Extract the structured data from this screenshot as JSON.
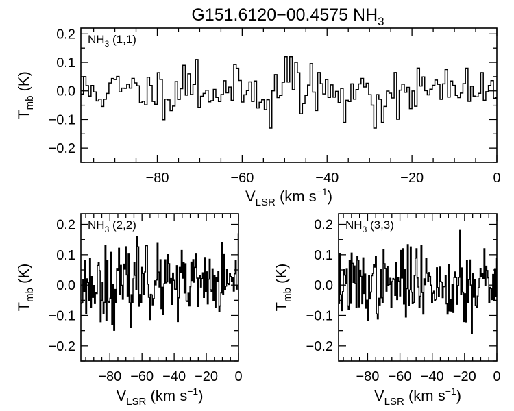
{
  "figure": {
    "title_main": "G151.6120−00.4575 NH",
    "title_sub": "3"
  },
  "axis_labels": {
    "x_main": "V",
    "x_sub": "LSR",
    "x_unit": " (km s",
    "x_sup": "−1",
    "x_close": ")",
    "y_main": "T",
    "y_sub": "mb",
    "y_unit": " (K)"
  },
  "chart_data": [
    {
      "type": "line",
      "title": "NH3 (1,1)",
      "label_main": "NH",
      "label_sub": "3",
      "label_rest": " (1,1)",
      "xlim": [
        -98,
        0
      ],
      "ylim": [
        -0.25,
        0.22
      ],
      "xticks": [
        -80,
        -60,
        -40,
        -20,
        0
      ],
      "xtick_labels": [
        "−80",
        "−60",
        "−40",
        "−20",
        "0"
      ],
      "yticks": [
        0.2,
        0.1,
        0.0,
        -0.1,
        -0.2
      ],
      "ytick_labels": [
        "0.2",
        "0.1",
        "0.0",
        "−0.1",
        "−0.2"
      ],
      "channel_width": 0.6,
      "noise_rms": 0.04,
      "features": [
        {
          "x": -97.5,
          "y": 0.05
        },
        {
          "x": -74.0,
          "y": 0.09
        },
        {
          "x": -71.0,
          "y": 0.11
        },
        {
          "x": -53.5,
          "y": -0.13
        },
        {
          "x": -50.0,
          "y": 0.12
        },
        {
          "x": -49.0,
          "y": 0.12
        },
        {
          "x": -47.5,
          "y": 0.1
        },
        {
          "x": -36.0,
          "y": -0.11
        },
        {
          "x": -29.0,
          "y": -0.13
        },
        {
          "x": -27.0,
          "y": -0.11
        },
        {
          "x": -19.0,
          "y": 0.08
        }
      ]
    },
    {
      "type": "line",
      "title": "NH3 (2,2)",
      "label_main": "NH",
      "label_sub": "3",
      "label_rest": " (2,2)",
      "xlim": [
        -98,
        0
      ],
      "ylim": [
        -0.25,
        0.235
      ],
      "xticks": [
        -80,
        -60,
        -40,
        -20,
        0
      ],
      "xtick_labels": [
        "−80",
        "−60",
        "−40",
        "−20",
        "0"
      ],
      "yticks": [
        0.2,
        0.1,
        0.0,
        -0.1,
        -0.2
      ],
      "ytick_labels": [
        "0.2",
        "0.1",
        "0.0",
        "−0.1",
        "−0.2"
      ],
      "channel_width": 0.6,
      "noise_rms": 0.055,
      "features": [
        {
          "x": -83.0,
          "y": 0.13
        },
        {
          "x": -79.0,
          "y": -0.13
        },
        {
          "x": -63.0,
          "y": 0.16
        },
        {
          "x": -57.5,
          "y": 0.13
        },
        {
          "x": -38.0,
          "y": -0.12
        }
      ]
    },
    {
      "type": "line",
      "title": "NH3 (3,3)",
      "label_main": "NH",
      "label_sub": "3",
      "label_rest": " (3,3)",
      "xlim": [
        -98,
        0
      ],
      "ylim": [
        -0.25,
        0.235
      ],
      "xticks": [
        -80,
        -60,
        -40,
        -20,
        0
      ],
      "xtick_labels": [
        "−80",
        "−60",
        "−40",
        "−20",
        "0"
      ],
      "yticks": [
        0.2,
        0.1,
        0.0,
        -0.1,
        -0.2
      ],
      "ytick_labels": [
        "0.2",
        "0.1",
        "0.0",
        "−0.1",
        "−0.2"
      ],
      "channel_width": 0.6,
      "noise_rms": 0.055,
      "features": [
        {
          "x": -58.5,
          "y": 0.12
        },
        {
          "x": -50.0,
          "y": 0.12
        },
        {
          "x": -47.0,
          "y": 0.13
        },
        {
          "x": -23.0,
          "y": 0.18
        },
        {
          "x": -20.5,
          "y": -0.12
        },
        {
          "x": -16.0,
          "y": -0.16
        },
        {
          "x": -8.0,
          "y": 0.12
        }
      ]
    }
  ]
}
